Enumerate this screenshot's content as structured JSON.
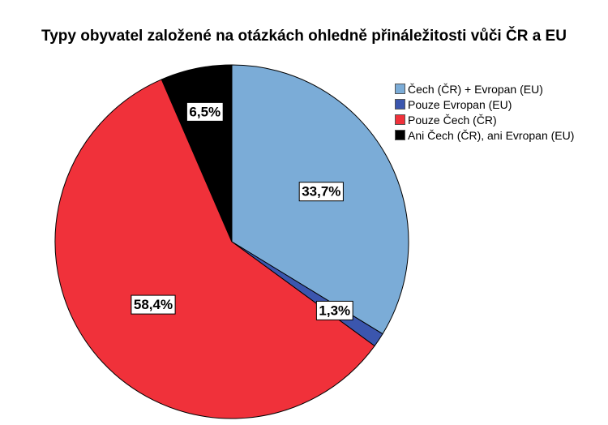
{
  "chart_data": {
    "type": "pie",
    "title": "Typy obyvatel založené na otázkách ohledně přináležitosti vůči ČR a EU",
    "slices": [
      {
        "name": "Čech (ČR) + Evropan (EU)",
        "value": 33.7,
        "label": "33,7%",
        "color": "#7bacd7"
      },
      {
        "name": "Pouze Evropan (EU)",
        "value": 1.3,
        "label": "1,3%",
        "color": "#3b56ae"
      },
      {
        "name": "Pouze Čech (ČR)",
        "value": 58.4,
        "label": "58,4%",
        "color": "#f0313a"
      },
      {
        "name": "Ani Čech (ČR), ani Evropan (EU)",
        "value": 6.5,
        "label": "6,5%",
        "color": "#000000"
      }
    ],
    "legend_position": "top-right",
    "start_angle": "12 o'clock",
    "direction": "clockwise"
  }
}
